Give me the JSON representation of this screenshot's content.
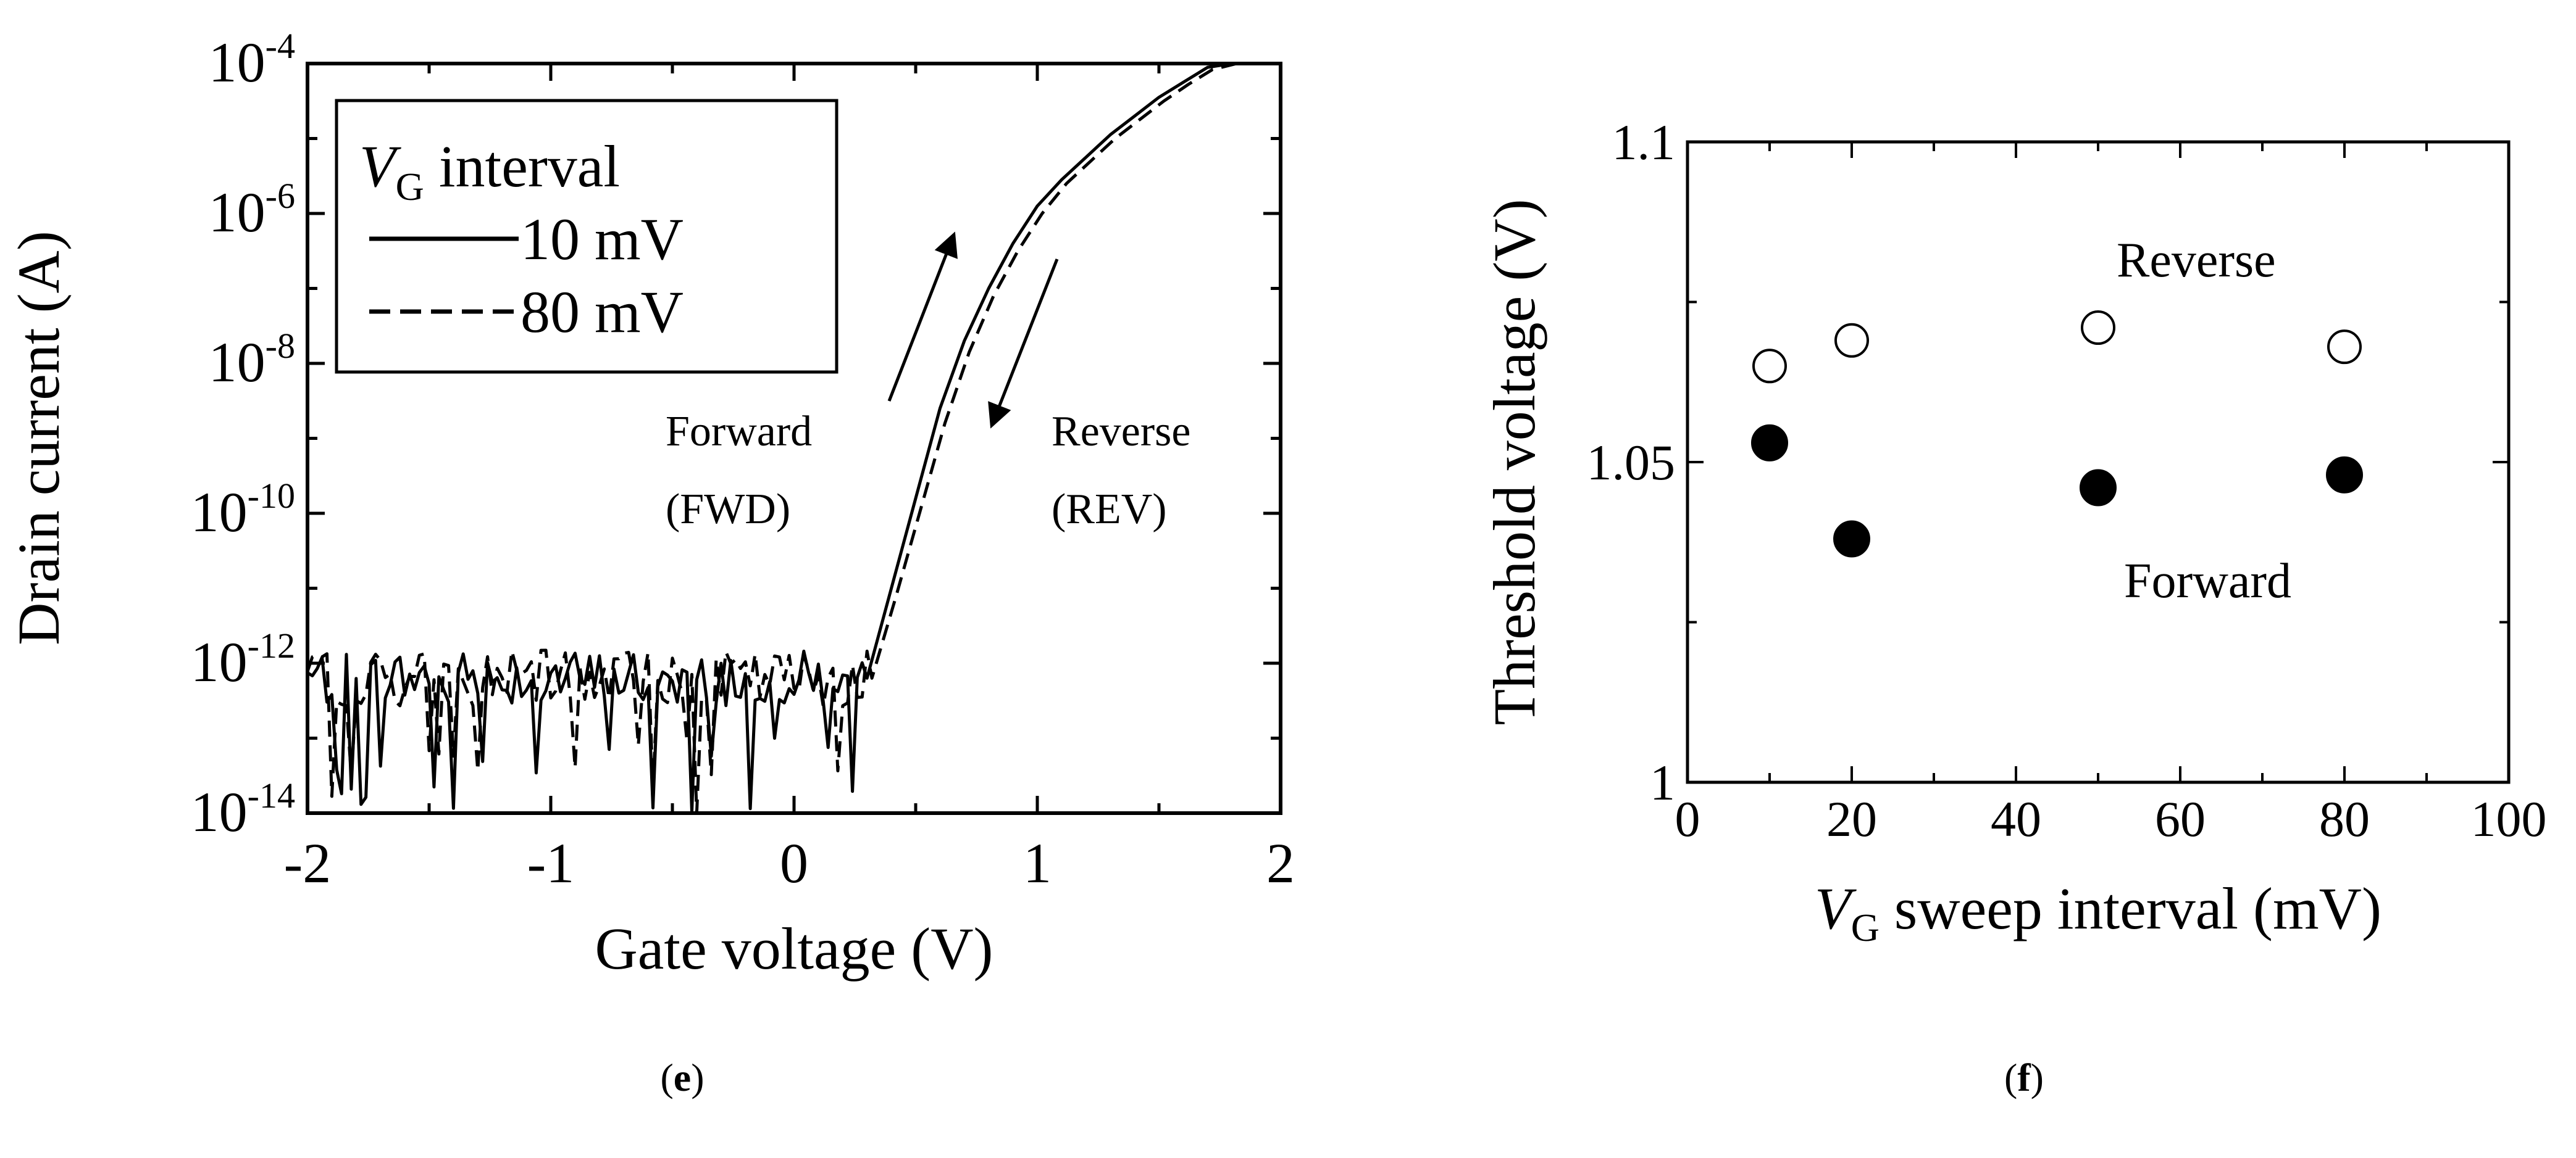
{
  "chart_data": [
    {
      "panel": "e",
      "type": "line",
      "xlabel": "Gate voltage (V)",
      "ylabel": "Drain current (A)",
      "xlim": [
        -2,
        2
      ],
      "x_ticks": [
        "-2",
        "-1",
        "0",
        "1",
        "2"
      ],
      "y_scale": "log",
      "ylim_exponent": [
        -14,
        -4
      ],
      "y_tick_base": "10",
      "y_tick_exponents": [
        "-4",
        "-6",
        "-8",
        "-10",
        "-12",
        "-14"
      ],
      "legend": {
        "title_main": "V",
        "title_sub": "G",
        "title_rest": " interval",
        "entries": [
          {
            "label": "10 mV",
            "style": "solid"
          },
          {
            "label": "80 mV",
            "style": "dashed"
          }
        ]
      },
      "annotations": {
        "forward_line1": "Forward",
        "forward_line2": "(FWD)",
        "reverse_line1": "Reverse",
        "reverse_line2": "(REV)"
      },
      "series": [
        {
          "name": "10 mV",
          "style": "solid",
          "x": [
            0.3,
            0.4,
            0.5,
            0.6,
            0.7,
            0.8,
            0.9,
            1.0,
            1.1,
            1.2,
            1.3,
            1.4,
            1.5,
            1.6,
            1.7,
            1.8,
            2.0
          ],
          "log10_y": [
            -12.2,
            -11.0,
            -9.8,
            -8.6,
            -7.7,
            -7.0,
            -6.4,
            -5.9,
            -5.55,
            -5.25,
            -4.95,
            -4.7,
            -4.45,
            -4.25,
            -4.05,
            -4.0,
            -4.0
          ]
        },
        {
          "name": "80 mV",
          "style": "dashed",
          "x": [
            0.32,
            0.42,
            0.52,
            0.62,
            0.72,
            0.82,
            0.92,
            1.02,
            1.12,
            1.22,
            1.32,
            1.42,
            1.52,
            1.62,
            1.72,
            1.82,
            2.0
          ],
          "log10_y": [
            -12.2,
            -11.1,
            -9.95,
            -8.8,
            -7.85,
            -7.1,
            -6.5,
            -6.0,
            -5.6,
            -5.3,
            -5.0,
            -4.75,
            -4.5,
            -4.28,
            -4.08,
            -4.0,
            -4.0
          ]
        }
      ]
    },
    {
      "panel": "f",
      "type": "scatter",
      "xlabel_main": "V",
      "xlabel_sub": "G",
      "xlabel_rest": " sweep interval (mV)",
      "ylabel": "Threshold voltage (V)",
      "xlim": [
        0,
        100
      ],
      "ylim": [
        1,
        1.1
      ],
      "x_ticks": [
        "0",
        "20",
        "40",
        "60",
        "80",
        "100"
      ],
      "y_ticks": [
        "1",
        "1.05",
        "1.1"
      ],
      "series": [
        {
          "name": "Reverse",
          "marker": "open-circle",
          "x": [
            10,
            20,
            50,
            80
          ],
          "y": [
            1.065,
            1.069,
            1.071,
            1.068
          ]
        },
        {
          "name": "Forward",
          "marker": "filled-circle",
          "x": [
            10,
            20,
            50,
            80
          ],
          "y": [
            1.053,
            1.038,
            1.046,
            1.048
          ]
        }
      ],
      "annotations": {
        "reverse": "Reverse",
        "forward": "Forward"
      }
    }
  ],
  "captions": {
    "e_open": "(",
    "e_letter": "e",
    "e_close": ")",
    "f_open": "(",
    "f_letter": "f",
    "f_close": ")"
  }
}
